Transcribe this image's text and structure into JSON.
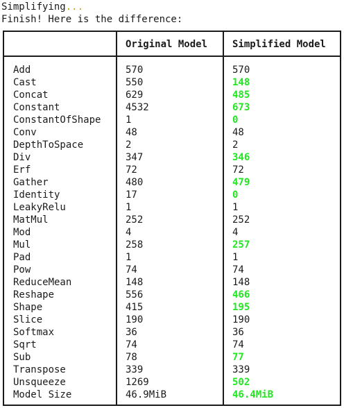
{
  "terminal": {
    "line1_prefix": "Simplifying",
    "line1_dots": "...",
    "line2": "Finish! Here is the difference:"
  },
  "table": {
    "headers": [
      "",
      "Original Model",
      "Simplified Model"
    ],
    "rows": [
      {
        "name": "Add",
        "original": "570",
        "simplified": "570",
        "changed": false
      },
      {
        "name": "Cast",
        "original": "550",
        "simplified": "148",
        "changed": true
      },
      {
        "name": "Concat",
        "original": "629",
        "simplified": "485",
        "changed": true
      },
      {
        "name": "Constant",
        "original": "4532",
        "simplified": "673",
        "changed": true
      },
      {
        "name": "ConstantOfShape",
        "original": "1",
        "simplified": "0",
        "changed": true
      },
      {
        "name": "Conv",
        "original": "48",
        "simplified": "48",
        "changed": false
      },
      {
        "name": "DepthToSpace",
        "original": "2",
        "simplified": "2",
        "changed": false
      },
      {
        "name": "Div",
        "original": "347",
        "simplified": "346",
        "changed": true
      },
      {
        "name": "Erf",
        "original": "72",
        "simplified": "72",
        "changed": false
      },
      {
        "name": "Gather",
        "original": "480",
        "simplified": "479",
        "changed": true
      },
      {
        "name": "Identity",
        "original": "17",
        "simplified": "0",
        "changed": true
      },
      {
        "name": "LeakyRelu",
        "original": "1",
        "simplified": "1",
        "changed": false
      },
      {
        "name": "MatMul",
        "original": "252",
        "simplified": "252",
        "changed": false
      },
      {
        "name": "Mod",
        "original": "4",
        "simplified": "4",
        "changed": false
      },
      {
        "name": "Mul",
        "original": "258",
        "simplified": "257",
        "changed": true
      },
      {
        "name": "Pad",
        "original": "1",
        "simplified": "1",
        "changed": false
      },
      {
        "name": "Pow",
        "original": "74",
        "simplified": "74",
        "changed": false
      },
      {
        "name": "ReduceMean",
        "original": "148",
        "simplified": "148",
        "changed": false
      },
      {
        "name": "Reshape",
        "original": "556",
        "simplified": "466",
        "changed": true
      },
      {
        "name": "Shape",
        "original": "415",
        "simplified": "195",
        "changed": true
      },
      {
        "name": "Slice",
        "original": "190",
        "simplified": "190",
        "changed": false
      },
      {
        "name": "Softmax",
        "original": "36",
        "simplified": "36",
        "changed": false
      },
      {
        "name": "Sqrt",
        "original": "74",
        "simplified": "74",
        "changed": false
      },
      {
        "name": "Sub",
        "original": "78",
        "simplified": "77",
        "changed": true
      },
      {
        "name": "Transpose",
        "original": "339",
        "simplified": "339",
        "changed": false
      },
      {
        "name": "Unsqueeze",
        "original": "1269",
        "simplified": "502",
        "changed": true
      },
      {
        "name": "Model Size",
        "original": "46.9MiB",
        "simplified": "46.4MiB",
        "changed": true
      }
    ]
  },
  "colors": {
    "changed": "#22e622",
    "dots": "#c8a000"
  }
}
